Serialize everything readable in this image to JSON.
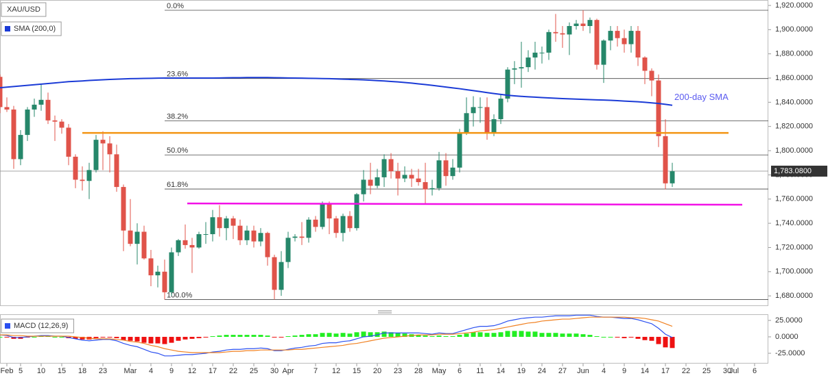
{
  "chart_data": [
    {
      "type": "candlestick",
      "title": "XAU/USD",
      "up_color": "#26876a",
      "down_color": "#e0534a",
      "open": [
        1861,
        1836,
        1834,
        1793,
        1813,
        1834,
        1838,
        1842,
        1825,
        1824,
        1819,
        1795,
        1776,
        1775,
        1784,
        1809,
        1806,
        1797,
        1770,
        1734,
        1723,
        1733,
        1711,
        1697,
        1700,
        1683,
        1716,
        1726,
        1722,
        1720,
        1731,
        1731,
        1745,
        1736,
        1744,
        1738,
        1726,
        1734,
        1725,
        1732,
        1712,
        1685,
        1708,
        1728,
        1729,
        1728,
        1743,
        1737,
        1756,
        1744,
        1732,
        1746,
        1736,
        1764,
        1776,
        1771,
        1778,
        1793,
        1783,
        1777,
        1780,
        1777,
        1774,
        1768,
        1769,
        1792,
        1779,
        1786,
        1815,
        1831,
        1836,
        1836,
        1815,
        1826,
        1843,
        1867,
        1868,
        1869,
        1877,
        1881,
        1881,
        1898,
        1897,
        1896,
        1903,
        1905,
        1903,
        1908,
        1871,
        1891,
        1899,
        1893,
        1888,
        1899,
        1877,
        1866,
        1858,
        1812,
        1773
      ],
      "high": [
        1863,
        1844,
        1837,
        1817,
        1836,
        1843,
        1855,
        1848,
        1829,
        1826,
        1822,
        1797,
        1787,
        1790,
        1813,
        1816,
        1812,
        1805,
        1772,
        1760,
        1740,
        1738,
        1718,
        1705,
        1710,
        1720,
        1727,
        1739,
        1728,
        1733,
        1741,
        1751,
        1755,
        1746,
        1746,
        1743,
        1738,
        1738,
        1736,
        1733,
        1714,
        1717,
        1733,
        1731,
        1741,
        1745,
        1746,
        1758,
        1758,
        1746,
        1748,
        1750,
        1765,
        1784,
        1790,
        1785,
        1797,
        1798,
        1790,
        1787,
        1785,
        1785,
        1790,
        1776,
        1799,
        1798,
        1793,
        1818,
        1844,
        1845,
        1844,
        1844,
        1830,
        1846,
        1869,
        1874,
        1890,
        1883,
        1890,
        1886,
        1900,
        1913,
        1903,
        1906,
        1908,
        1916,
        1910,
        1909,
        1892,
        1903,
        1903,
        1900,
        1903,
        1903,
        1878,
        1868,
        1863,
        1826,
        1790
      ],
      "low": [
        1831,
        1832,
        1785,
        1788,
        1808,
        1828,
        1833,
        1822,
        1808,
        1814,
        1788,
        1769,
        1767,
        1760,
        1782,
        1784,
        1782,
        1766,
        1717,
        1721,
        1706,
        1710,
        1688,
        1687,
        1677,
        1680,
        1713,
        1719,
        1699,
        1719,
        1723,
        1725,
        1729,
        1726,
        1727,
        1722,
        1722,
        1720,
        1721,
        1705,
        1677,
        1680,
        1703,
        1725,
        1722,
        1724,
        1733,
        1735,
        1731,
        1728,
        1725,
        1733,
        1734,
        1758,
        1764,
        1769,
        1770,
        1777,
        1763,
        1774,
        1770,
        1771,
        1756,
        1763,
        1767,
        1771,
        1776,
        1782,
        1813,
        1820,
        1823,
        1809,
        1812,
        1822,
        1840,
        1855,
        1852,
        1865,
        1867,
        1872,
        1875,
        1890,
        1885,
        1879,
        1900,
        1899,
        1897,
        1867,
        1856,
        1883,
        1886,
        1881,
        1881,
        1870,
        1855,
        1845,
        1803,
        1768,
        1770
      ],
      "close": [
        1836,
        1834,
        1793,
        1813,
        1834,
        1838,
        1842,
        1825,
        1824,
        1819,
        1795,
        1776,
        1775,
        1784,
        1809,
        1806,
        1797,
        1770,
        1734,
        1723,
        1733,
        1711,
        1697,
        1700,
        1683,
        1716,
        1726,
        1722,
        1720,
        1731,
        1731,
        1745,
        1736,
        1744,
        1738,
        1726,
        1734,
        1725,
        1732,
        1712,
        1685,
        1708,
        1728,
        1729,
        1728,
        1743,
        1737,
        1756,
        1744,
        1732,
        1746,
        1736,
        1764,
        1776,
        1771,
        1778,
        1793,
        1783,
        1777,
        1780,
        1777,
        1774,
        1768,
        1769,
        1792,
        1779,
        1786,
        1815,
        1831,
        1836,
        1836,
        1815,
        1826,
        1843,
        1867,
        1868,
        1869,
        1877,
        1881,
        1881,
        1898,
        1897,
        1896,
        1903,
        1905,
        1903,
        1908,
        1871,
        1891,
        1899,
        1893,
        1888,
        1899,
        1877,
        1866,
        1858,
        1812,
        1773,
        1783
      ],
      "series": [
        {
          "name": "SMA (200,0)",
          "color": "#1a3ad6",
          "values": [
            1852,
            1852.5,
            1853,
            1853.5,
            1854,
            1854.5,
            1855,
            1855.5,
            1856,
            1856.5,
            1857,
            1857.3,
            1857.6,
            1858,
            1858.3,
            1858.6,
            1858.9,
            1859.1,
            1859.3,
            1859.5,
            1859.6,
            1859.7,
            1859.8,
            1859.9,
            1860,
            1860,
            1860,
            1860,
            1860,
            1860,
            1860,
            1860,
            1860.1,
            1860.2,
            1860.3,
            1860.3,
            1860.4,
            1860.4,
            1860.4,
            1860.4,
            1860.3,
            1860.2,
            1860.1,
            1860,
            1859.9,
            1859.8,
            1859.7,
            1859.6,
            1859.5,
            1859.3,
            1859.1,
            1858.9,
            1858.7,
            1858.5,
            1858.2,
            1857.9,
            1857.6,
            1857.2,
            1856.8,
            1856.3,
            1855.8,
            1855.2,
            1854.6,
            1854,
            1853.3,
            1852.6,
            1851.9,
            1851.2,
            1850.4,
            1849.6,
            1848.8,
            1848,
            1847.2,
            1846.5,
            1845.8,
            1845.3,
            1844.9,
            1844.5,
            1844.2,
            1843.9,
            1843.6,
            1843.3,
            1843,
            1842.8,
            1842.6,
            1842.4,
            1842.2,
            1842,
            1841.8,
            1841.6,
            1841.3,
            1841,
            1840.7,
            1840.4,
            1840,
            1839.5,
            1839,
            1838.3,
            1837.5
          ]
        }
      ],
      "sma_label": "200-day SMA",
      "ylim": [
        1671.6,
        1924.5
      ],
      "yticks": [
        {
          "value": 1680,
          "label": "1,680.0000"
        },
        {
          "value": 1700,
          "label": "1,700.0000"
        },
        {
          "value": 1720,
          "label": "1,720.0000"
        },
        {
          "value": 1740,
          "label": "1,740.0000"
        },
        {
          "value": 1760,
          "label": "1,760.0000"
        },
        {
          "value": 1780,
          "label": "1,780.0000"
        },
        {
          "value": 1800,
          "label": "1,800.0000"
        },
        {
          "value": 1820,
          "label": "1,820.0000"
        },
        {
          "value": 1840,
          "label": "1,840.0000"
        },
        {
          "value": 1860,
          "label": "1,860.0000"
        },
        {
          "value": 1880,
          "label": "1,880.0000"
        },
        {
          "value": 1900,
          "label": "1,900.0000"
        },
        {
          "value": 1920,
          "label": "1,920.0000"
        }
      ],
      "fib_levels": [
        {
          "value": 1916,
          "label": "0.0%"
        },
        {
          "value": 1859.6,
          "label": "23.6%"
        },
        {
          "value": 1824.7,
          "label": "38.2%"
        },
        {
          "value": 1796.5,
          "label": "50.0%"
        },
        {
          "value": 1768.3,
          "label": "61.8%"
        },
        {
          "value": 1677,
          "label": "100.0%"
        }
      ],
      "trend_lines": [
        {
          "color": "#f39412",
          "x": [
            12,
            106.2
          ],
          "values": [
            1814.7,
            1814.7
          ]
        },
        {
          "color": "#f20fe6",
          "x": [
            27.3,
            108.2
          ],
          "values": [
            1756.4,
            1755.3
          ]
        }
      ],
      "last_price": {
        "value": 1783.08,
        "label": "1,783.0800"
      },
      "xticks": [
        {
          "value": 1,
          "label": "Feb"
        },
        {
          "value": 3,
          "label": "5"
        },
        {
          "value": 6,
          "label": "10"
        },
        {
          "value": 9,
          "label": "15"
        },
        {
          "value": 12,
          "label": "18"
        },
        {
          "value": 15,
          "label": "23"
        },
        {
          "value": 19,
          "label": "Mar"
        },
        {
          "value": 22,
          "label": "4"
        },
        {
          "value": 25,
          "label": "9"
        },
        {
          "value": 28,
          "label": "12"
        },
        {
          "value": 31,
          "label": "17"
        },
        {
          "value": 34,
          "label": "22"
        },
        {
          "value": 37,
          "label": "25"
        },
        {
          "value": 40,
          "label": "30"
        },
        {
          "value": 42,
          "label": "Apr"
        },
        {
          "value": 46,
          "label": "7"
        },
        {
          "value": 49,
          "label": "12"
        },
        {
          "value": 52,
          "label": "15"
        },
        {
          "value": 55,
          "label": "20"
        },
        {
          "value": 58,
          "label": "23"
        },
        {
          "value": 61,
          "label": "28"
        },
        {
          "value": 64,
          "label": "May"
        },
        {
          "value": 67,
          "label": "6"
        },
        {
          "value": 70,
          "label": "11"
        },
        {
          "value": 73,
          "label": "14"
        },
        {
          "value": 76,
          "label": "19"
        },
        {
          "value": 79,
          "label": "24"
        },
        {
          "value": 82,
          "label": "27"
        },
        {
          "value": 85,
          "label": "Jun"
        },
        {
          "value": 88,
          "label": "4"
        },
        {
          "value": 91,
          "label": "9"
        },
        {
          "value": 94,
          "label": "14"
        },
        {
          "value": 97,
          "label": "17"
        },
        {
          "value": 100,
          "label": "22"
        },
        {
          "value": 103,
          "label": "25"
        },
        {
          "value": 106,
          "label": "30"
        },
        {
          "value": 107,
          "label": "Jul"
        },
        {
          "value": 110,
          "label": "6"
        }
      ]
    },
    {
      "type": "macd",
      "title": "MACD (12,26,9)",
      "histogram": {
        "pos_color": "#22ee22",
        "neg_color": "#ee1111",
        "values": [
          0,
          -1,
          -3,
          -3,
          -1,
          0,
          1,
          1,
          0,
          0,
          -2,
          -3,
          -4,
          -4,
          -2,
          -1,
          -1,
          -2,
          -5,
          -6,
          -7,
          -9,
          -10,
          -10,
          -11,
          -9,
          -6,
          -4,
          -3,
          -2,
          -1,
          1,
          2,
          3,
          3,
          3,
          3,
          3,
          3,
          2,
          -1,
          -1,
          1,
          2,
          3,
          4,
          4,
          6,
          6,
          5,
          6,
          5,
          7,
          8,
          7,
          7,
          8,
          7,
          6,
          5,
          4,
          3,
          2,
          1,
          2,
          1,
          1,
          3,
          5,
          7,
          7,
          6,
          6,
          7,
          9,
          9,
          9,
          8,
          8,
          6,
          6,
          6,
          5,
          5,
          5,
          4,
          3,
          1,
          0,
          0,
          -1,
          -2,
          -1,
          -3,
          -5,
          -6,
          -11,
          -16,
          -17
        ]
      },
      "series": [
        {
          "name": "MACD",
          "color": "#2a4ff0",
          "values": [
            3,
            2,
            -1,
            -1,
            0,
            1,
            2,
            2,
            1,
            1,
            -1,
            -3,
            -5,
            -6,
            -5,
            -4,
            -4,
            -6,
            -10,
            -13,
            -15,
            -19,
            -23,
            -25,
            -29,
            -29,
            -28,
            -27,
            -27,
            -26,
            -25,
            -23,
            -22,
            -20,
            -19,
            -19,
            -18,
            -18,
            -17,
            -18,
            -21,
            -21,
            -19,
            -17,
            -16,
            -14,
            -13,
            -10,
            -9,
            -9,
            -7,
            -6,
            -3,
            0,
            1,
            3,
            6,
            6,
            6,
            6,
            6,
            6,
            5,
            4,
            6,
            5,
            5,
            8,
            11,
            14,
            16,
            16,
            17,
            20,
            24,
            26,
            28,
            29,
            30,
            30,
            31,
            32,
            32,
            32,
            33,
            33,
            33,
            31,
            30,
            30,
            29,
            28,
            28,
            26,
            23,
            20,
            13,
            4,
            -1
          ]
        },
        {
          "name": "Signal",
          "color": "#f08020",
          "values": [
            3,
            3,
            2,
            2,
            1,
            1,
            1,
            1,
            1,
            1,
            1,
            0,
            -1,
            -2,
            -3,
            -3,
            -3,
            -4,
            -5,
            -7,
            -8,
            -10,
            -13,
            -15,
            -18,
            -20,
            -22,
            -23,
            -24,
            -24,
            -24,
            -24,
            -24,
            -23,
            -22,
            -22,
            -21,
            -21,
            -20,
            -20,
            -20,
            -20,
            -20,
            -19,
            -19,
            -18,
            -17,
            -16,
            -15,
            -14,
            -13,
            -11,
            -10,
            -8,
            -6,
            -4,
            -2,
            -1,
            0,
            1,
            2,
            3,
            3,
            3,
            4,
            4,
            4,
            5,
            6,
            7,
            9,
            10,
            11,
            13,
            15,
            17,
            19,
            21,
            22,
            24,
            25,
            26,
            27,
            27,
            28,
            29,
            30,
            30,
            30,
            30,
            30,
            30,
            29,
            29,
            28,
            26,
            24,
            20,
            16
          ]
        }
      ],
      "ylim": [
        -39.6,
        33.3
      ],
      "yticks": [
        {
          "value": 25,
          "label": "25.0000"
        },
        {
          "value": 0,
          "label": "0.0000"
        },
        {
          "value": -25,
          "label": "-25.0000"
        }
      ]
    }
  ]
}
